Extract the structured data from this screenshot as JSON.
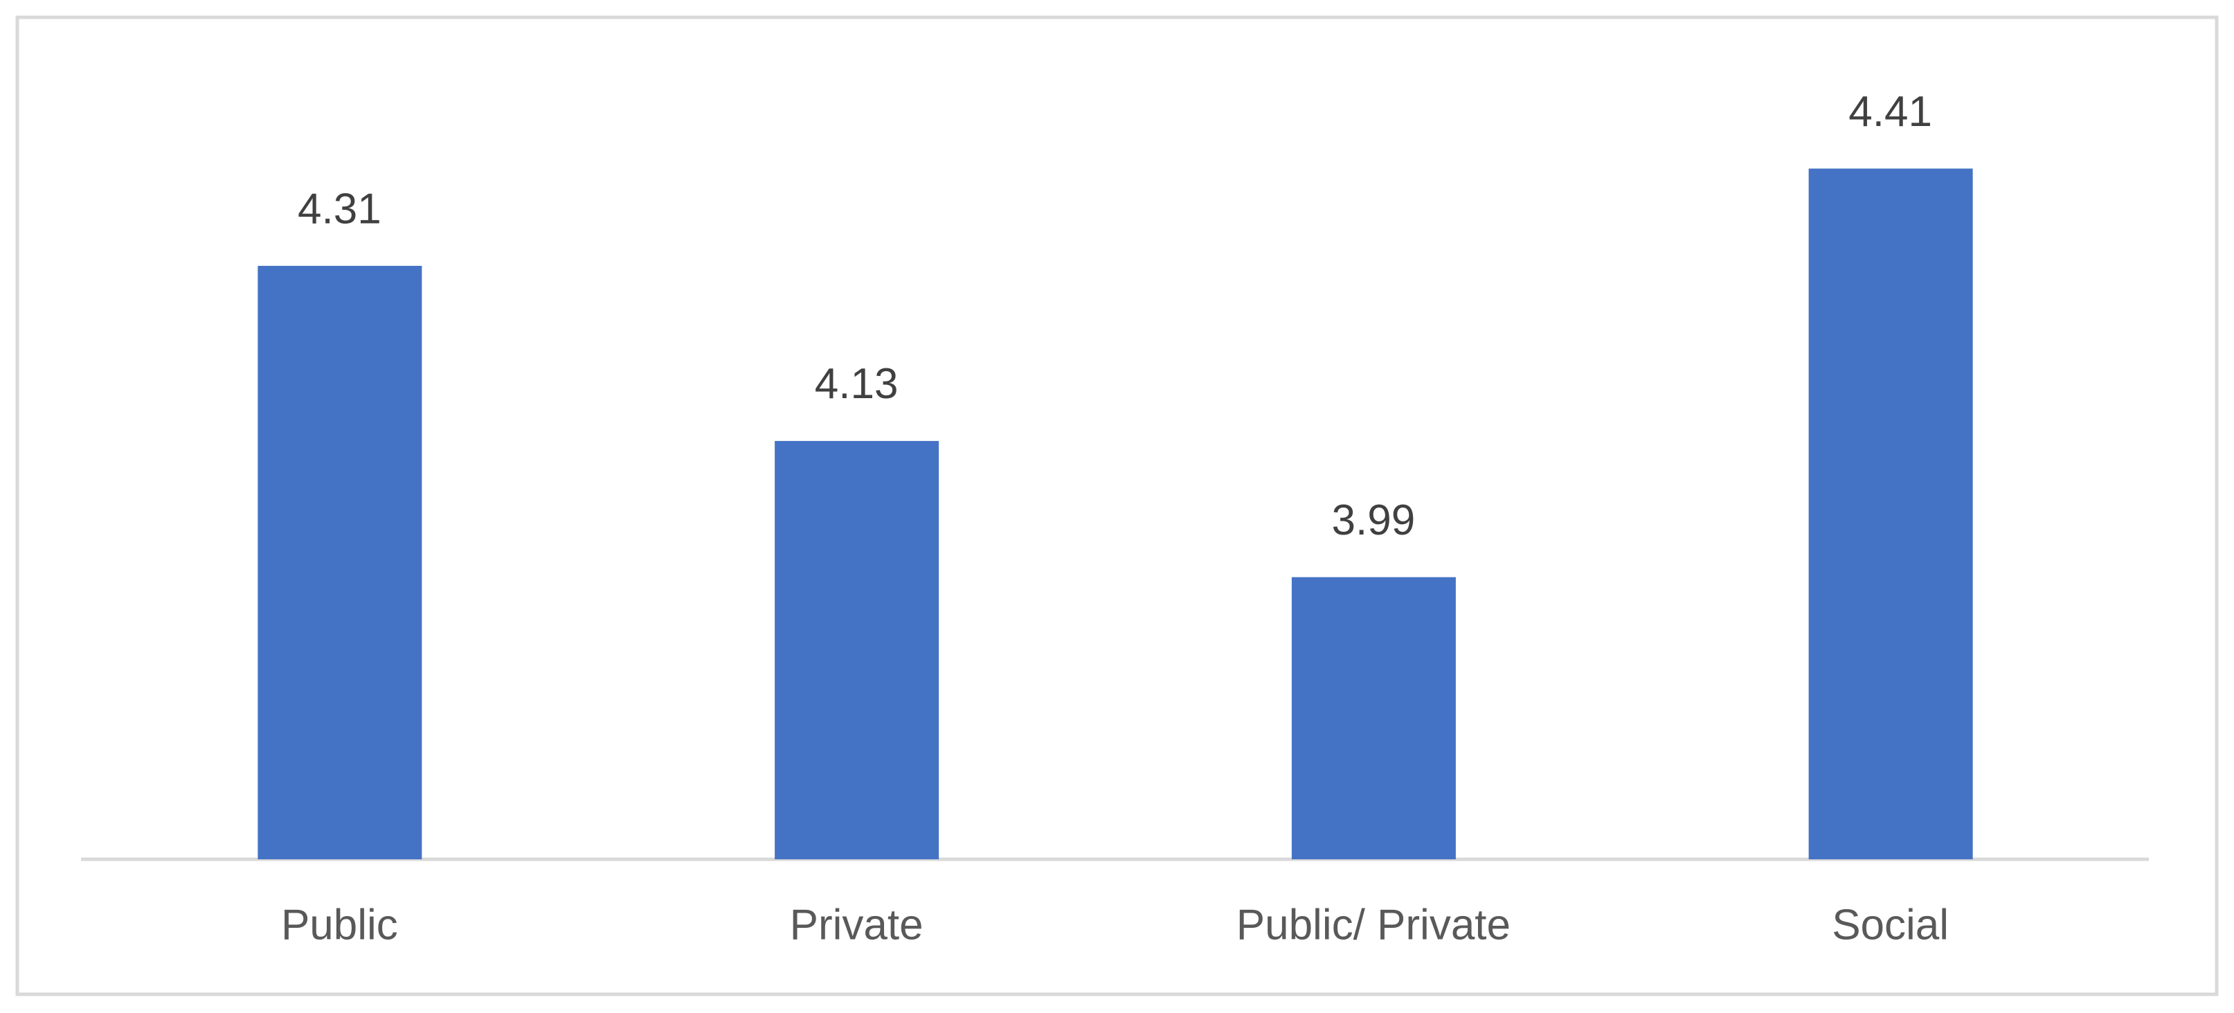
{
  "chart_data": {
    "type": "bar",
    "categories": [
      "Public",
      "Private",
      "Public/ Private",
      "Social"
    ],
    "values": [
      4.31,
      4.13,
      3.99,
      4.41
    ],
    "color": "#4472c4",
    "ylim": [
      3.7,
      4.5
    ]
  }
}
